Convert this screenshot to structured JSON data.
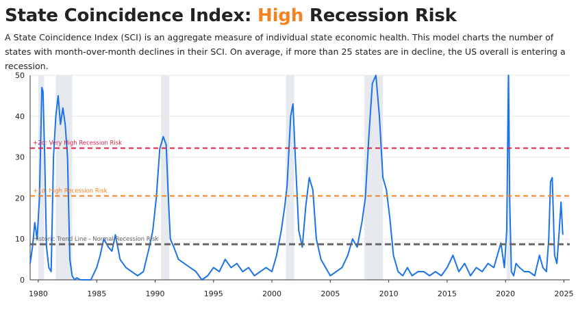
{
  "title": {
    "pre": "State Coincidence Index: ",
    "highlight": "High",
    "post": " Recession Risk",
    "highlight_color": "#f58220"
  },
  "description": "A State Coincidence Index (SCI) is an aggregate measure of individual state economic health. This model charts the number of states with month-over-month declines in their SCI. On average, if more than 25 states are in decline, the US overall is entering a recession.",
  "chart_data": {
    "type": "line",
    "title": "",
    "xlabel": "",
    "ylabel": "",
    "xlim": [
      1979.3,
      2025.5
    ],
    "ylim": [
      0,
      50
    ],
    "x_ticks": [
      1980,
      1985,
      1990,
      1995,
      2000,
      2005,
      2010,
      2015,
      2020,
      2025
    ],
    "y_ticks": [
      0,
      10,
      20,
      30,
      40,
      50
    ],
    "grid": "horizontal",
    "line_color": "#1a73e8",
    "recessions": [
      [
        1980.0,
        1980.5
      ],
      [
        1981.5,
        1982.9
      ],
      [
        1990.5,
        1991.2
      ],
      [
        2001.2,
        2001.9
      ],
      [
        2007.9,
        2009.5
      ],
      [
        2020.1,
        2020.4
      ]
    ],
    "reference_lines": [
      {
        "label": "+2σ: Very High Recession Risk",
        "value": 32.2,
        "color": "#d62246"
      },
      {
        "label": "+1σ: High Recession Risk",
        "value": 20.5,
        "color": "#f58220"
      },
      {
        "label": "Historic Trend Line - Normal Recession Risk",
        "value": 8.7,
        "color": "#666666"
      }
    ],
    "series": [
      {
        "x": [
          1979.3,
          1979.5,
          1979.7,
          1979.9,
          1980.1,
          1980.3,
          1980.4,
          1980.55,
          1980.7,
          1980.9,
          1981.1,
          1981.3,
          1981.5,
          1981.7,
          1981.9,
          1982.1,
          1982.3,
          1982.5,
          1982.7,
          1982.9,
          1983.1,
          1983.3,
          1983.6,
          1984.0,
          1984.5,
          1985.0,
          1985.3,
          1985.6,
          1986.0,
          1986.3,
          1986.6,
          1987.0,
          1987.5,
          1988.0,
          1988.5,
          1989.0,
          1989.5,
          1989.8,
          1990.1,
          1990.4,
          1990.7,
          1990.95,
          1991.1,
          1991.3,
          1991.6,
          1992.0,
          1992.5,
          1993.0,
          1993.5,
          1994.0,
          1994.5,
          1995.0,
          1995.5,
          1996.0,
          1996.5,
          1997.0,
          1997.5,
          1998.0,
          1998.5,
          1999.0,
          1999.5,
          2000.0,
          2000.4,
          2000.8,
          2001.1,
          2001.3,
          2001.6,
          2001.8,
          2002.0,
          2002.3,
          2002.6,
          2002.9,
          2003.2,
          2003.5,
          2003.8,
          2004.2,
          2004.6,
          2005.0,
          2005.5,
          2006.0,
          2006.5,
          2006.9,
          2007.3,
          2007.7,
          2008.0,
          2008.3,
          2008.6,
          2008.9,
          2009.2,
          2009.5,
          2009.8,
          2010.1,
          2010.4,
          2010.8,
          2011.2,
          2011.6,
          2012.0,
          2012.5,
          2013.0,
          2013.5,
          2014.0,
          2014.5,
          2015.0,
          2015.5,
          2016.0,
          2016.5,
          2017.0,
          2017.5,
          2018.0,
          2018.5,
          2019.0,
          2019.3,
          2019.6,
          2019.9,
          2020.1,
          2020.25,
          2020.35,
          2020.5,
          2020.7,
          2020.9,
          2021.2,
          2021.6,
          2022.0,
          2022.5,
          2022.9,
          2023.2,
          2023.5,
          2023.7,
          2023.85,
          2024.0,
          2024.2,
          2024.4,
          2024.6,
          2024.75,
          2024.9
        ],
        "y": [
          4,
          8,
          14,
          10,
          20,
          47,
          46,
          30,
          8,
          3,
          2,
          30,
          40,
          45,
          38,
          42,
          38,
          30,
          5,
          1,
          0,
          0.5,
          0,
          0,
          0,
          3,
          6,
          10,
          8,
          7,
          11,
          5,
          3,
          2,
          1,
          2,
          8,
          12,
          20,
          32,
          35,
          33,
          22,
          10,
          8,
          5,
          4,
          3,
          2,
          0,
          1,
          3,
          2,
          5,
          3,
          4,
          2,
          3,
          1,
          2,
          3,
          2,
          6,
          12,
          18,
          23,
          40,
          43,
          30,
          12,
          8,
          18,
          25,
          22,
          10,
          5,
          3,
          1,
          2,
          3,
          6,
          10,
          8,
          14,
          20,
          35,
          48,
          50,
          40,
          25,
          22,
          15,
          6,
          2,
          1,
          3,
          1,
          2,
          2,
          1,
          2,
          1,
          3,
          6,
          2,
          4,
          1,
          3,
          2,
          4,
          3,
          6,
          9,
          3,
          12,
          50,
          20,
          2,
          1,
          4,
          3,
          2,
          2,
          1,
          6,
          3,
          2,
          10,
          24,
          25,
          6,
          4,
          12,
          19,
          11
        ]
      }
    ]
  }
}
